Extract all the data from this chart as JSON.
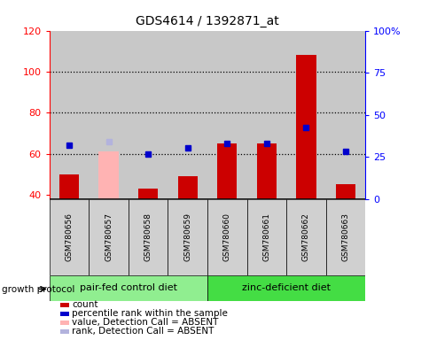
{
  "title": "GDS4614 / 1392871_at",
  "samples": [
    "GSM780656",
    "GSM780657",
    "GSM780658",
    "GSM780659",
    "GSM780660",
    "GSM780661",
    "GSM780662",
    "GSM780663"
  ],
  "count_values": [
    50,
    null,
    43,
    49,
    65,
    65,
    108,
    45
  ],
  "count_absent_values": [
    null,
    61,
    null,
    null,
    null,
    null,
    null,
    null
  ],
  "rank_values": [
    64,
    null,
    60,
    63,
    65,
    65,
    73,
    61
  ],
  "rank_absent_values": [
    null,
    66,
    null,
    null,
    null,
    null,
    null,
    null
  ],
  "ylim_left": [
    38,
    120
  ],
  "ylim_right": [
    0,
    100
  ],
  "yticks_left": [
    40,
    60,
    80,
    100,
    120
  ],
  "yticks_right": [
    0,
    25,
    50,
    75,
    100
  ],
  "yticklabels_right": [
    "0",
    "25",
    "50",
    "75",
    "100%"
  ],
  "group1_label": "pair-fed control diet",
  "group2_label": "zinc-deficient diet",
  "protocol_label": "growth protocol",
  "bar_width": 0.5,
  "marker_size": 5,
  "count_color": "#cc0000",
  "rank_color": "#0000cc",
  "count_absent_color": "#ffb3b3",
  "rank_absent_color": "#b3b3dd",
  "dotted_lines": [
    60,
    80,
    100
  ],
  "legend_items": [
    {
      "label": "count",
      "color": "#cc0000"
    },
    {
      "label": "percentile rank within the sample",
      "color": "#0000cc"
    },
    {
      "label": "value, Detection Call = ABSENT",
      "color": "#ffb3b3"
    },
    {
      "label": "rank, Detection Call = ABSENT",
      "color": "#b3b3dd"
    }
  ]
}
